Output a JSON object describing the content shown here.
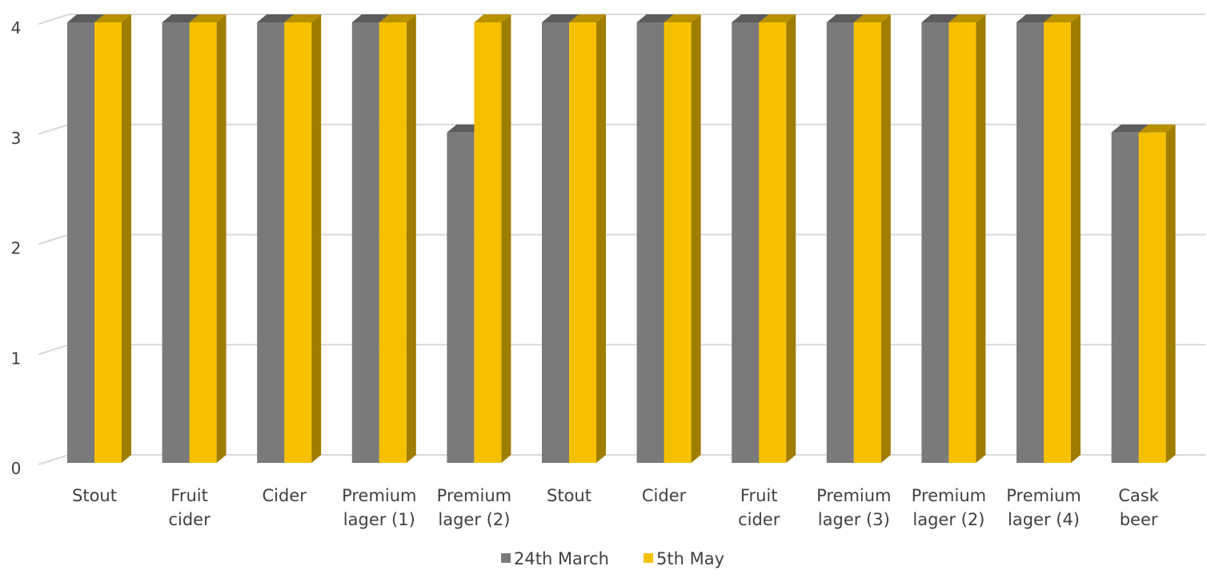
{
  "chart_data": {
    "type": "bar",
    "title": "",
    "xlabel": "",
    "ylabel": "",
    "ylim": [
      0,
      4
    ],
    "yticks": [
      "0",
      "1",
      "2",
      "3",
      "4"
    ],
    "grid": true,
    "legend_position": "bottom",
    "categories": [
      [
        "Stout"
      ],
      [
        "Fruit",
        "cider"
      ],
      [
        "Cider"
      ],
      [
        "Premium",
        "lager (1)"
      ],
      [
        "Premium",
        "lager (2)"
      ],
      [
        "Stout"
      ],
      [
        "Cider"
      ],
      [
        "Fruit",
        "cider"
      ],
      [
        "Premium",
        "lager (3)"
      ],
      [
        "Premium",
        "lager (2)"
      ],
      [
        "Premium",
        "lager (4)"
      ],
      [
        "Cask",
        "beer"
      ]
    ],
    "series": [
      {
        "name": "24th March",
        "color": "#7a7a7a",
        "values": [
          4,
          4,
          4,
          4,
          3,
          4,
          4,
          4,
          4,
          4,
          4,
          3
        ]
      },
      {
        "name": "5th May",
        "color": "#f5c000",
        "values": [
          4,
          4,
          4,
          4,
          4,
          4,
          4,
          4,
          4,
          4,
          4,
          3
        ]
      }
    ]
  }
}
